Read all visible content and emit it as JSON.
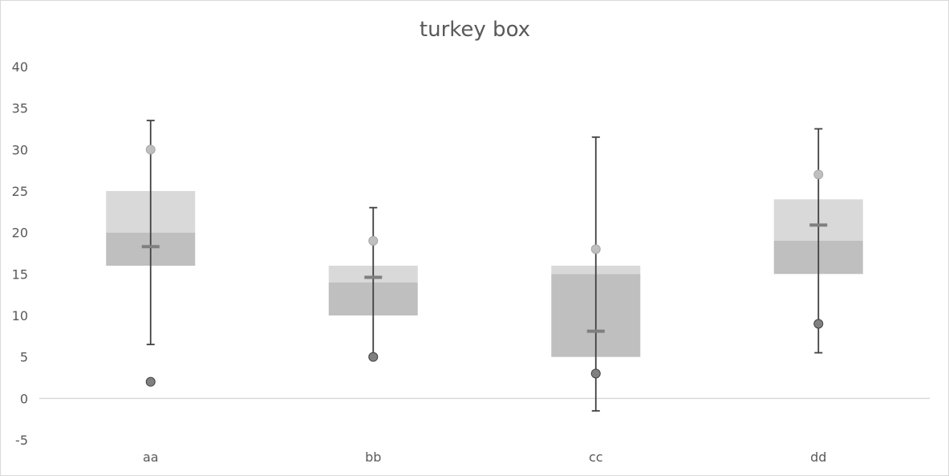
{
  "chart_data": {
    "type": "box",
    "title": "turkey box",
    "xlabel": "",
    "ylabel": "",
    "categories": [
      "aa",
      "bb",
      "cc",
      "dd"
    ],
    "y_ticks": [
      "40",
      "35",
      "30",
      "25",
      "20",
      "15",
      "10",
      "5",
      "0",
      "-5"
    ],
    "ylim": [
      -5,
      40
    ],
    "grid": false,
    "legend": "none",
    "boxes": [
      {
        "category": "aa",
        "q1": 16,
        "median": 20,
        "q3": 25,
        "mean": 18.3,
        "whisker_low": 6.5,
        "whisker_high": 33.5,
        "max_point": 30,
        "min_point": 2
      },
      {
        "category": "bb",
        "q1": 10,
        "median": 14,
        "q3": 16,
        "mean": 14.6,
        "whisker_low": 5,
        "whisker_high": 23,
        "max_point": 19,
        "min_point": 5
      },
      {
        "category": "cc",
        "q1": 5,
        "median": 15,
        "q3": 16,
        "mean": 8.1,
        "whisker_low": -1.5,
        "whisker_high": 31.5,
        "max_point": 18,
        "min_point": 3
      },
      {
        "category": "dd",
        "q1": 15,
        "median": 19,
        "q3": 24,
        "mean": 20.9,
        "whisker_low": 5.5,
        "whisker_high": 32.5,
        "max_point": 27,
        "min_point": 9
      }
    ],
    "colors": {
      "lower_box": "#bfbfbf",
      "upper_box": "#d9d9d9",
      "whisker": "#404040",
      "mean_marker": "#7f7f7f",
      "max_point": "#bfbfbf",
      "min_point": "#808080",
      "axis": "#d9d9d9",
      "text": "#595959"
    }
  }
}
